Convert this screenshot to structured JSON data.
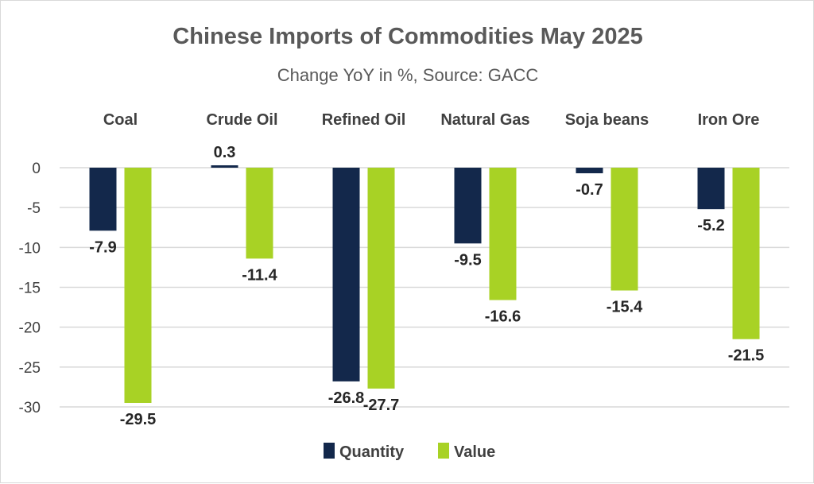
{
  "chart_data": {
    "type": "bar",
    "title": "Chinese Imports of Commodities May 2025",
    "subtitle": "Change YoY in %, Source: GACC",
    "categories": [
      "Coal",
      "Crude Oil",
      "Refined Oil",
      "Natural Gas",
      "Soja beans",
      "Iron Ore"
    ],
    "series": [
      {
        "name": "Quantity",
        "values": [
          -7.9,
          0.3,
          -26.8,
          -9.5,
          -0.7,
          -5.2
        ],
        "color": "#13284b"
      },
      {
        "name": "Value",
        "values": [
          -29.5,
          -11.4,
          -27.7,
          -16.6,
          -15.4,
          -21.5
        ],
        "color": "#a8d225"
      }
    ],
    "y_ticks": [
      "0",
      "-5",
      "-10",
      "-15",
      "-20",
      "-25",
      "-30"
    ],
    "ylim": [
      -30,
      0
    ],
    "grid": true,
    "legend_position": "bottom",
    "category_labels_position": "top"
  }
}
